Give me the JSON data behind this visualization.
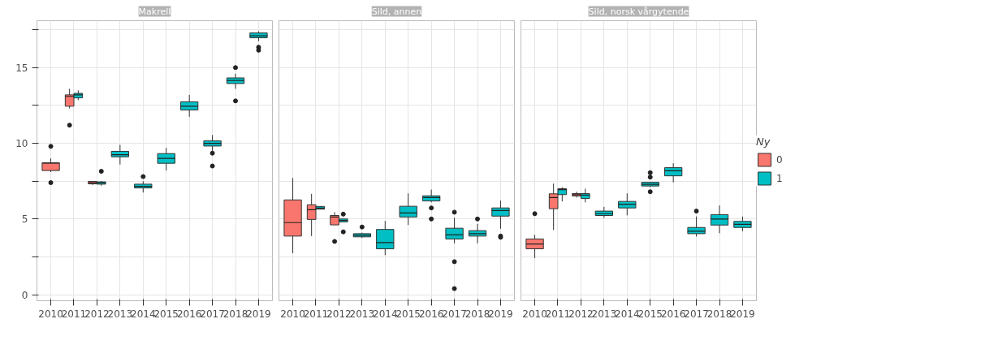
{
  "chart_data": [
    {
      "type": "box",
      "title": "Makrell",
      "categories": [
        "2010",
        "2011",
        "2012",
        "2013",
        "2014",
        "2015",
        "2016",
        "2017",
        "2018",
        "2019"
      ],
      "ylim": [
        -0.4,
        18.1
      ],
      "yticks": [
        0,
        {
          "value": 2.5,
          "label": null
        },
        5,
        {
          "value": 7.5,
          "label": null
        },
        10,
        {
          "value": 12.5,
          "label": null
        },
        15,
        {
          "value": 17.5,
          "label": null
        }
      ],
      "grid": true,
      "legend": false,
      "series": [
        {
          "color": "#f8766d",
          "boxes": [
            {
              "low": 8.1,
              "q1": 8.2,
              "median": 8.7,
              "q3": 8.7,
              "high": 9.0,
              "outliers": [
                9.8,
                7.4
              ]
            },
            {
              "low": 12.3,
              "q1": 12.45,
              "median": 13.1,
              "q3": 13.2,
              "high": 13.6,
              "outliers": [
                11.2
              ]
            },
            {
              "low": 7.25,
              "q1": 7.32,
              "median": 7.4,
              "q3": 7.48,
              "high": 7.5
            },
            null,
            null,
            null,
            null,
            null,
            null,
            null
          ]
        },
        {
          "color": "#00bfc4",
          "boxes": [
            null,
            {
              "low": 12.85,
              "q1": 13.0,
              "median": 13.2,
              "q3": 13.3,
              "high": 13.5
            },
            {
              "low": 7.2,
              "q1": 7.3,
              "median": 7.4,
              "q3": 7.45,
              "high": 7.5,
              "outliers": [
                8.15
              ]
            },
            {
              "low": 8.6,
              "q1": 9.11,
              "median": 9.25,
              "q3": 9.47,
              "high": 9.9
            },
            {
              "low": 6.75,
              "q1": 7.05,
              "median": 7.15,
              "q3": 7.3,
              "high": 7.5,
              "outliers": [
                7.8
              ]
            },
            {
              "low": 8.2,
              "q1": 8.68,
              "median": 9.0,
              "q3": 9.32,
              "high": 9.7
            },
            {
              "low": 11.75,
              "q1": 12.2,
              "median": 12.45,
              "q3": 12.74,
              "high": 13.2
            },
            {
              "low": 9.5,
              "q1": 9.82,
              "median": 10.0,
              "q3": 10.16,
              "high": 10.55,
              "outliers": [
                9.35,
                8.5
              ]
            },
            {
              "low": 13.6,
              "q1": 13.95,
              "median": 14.15,
              "q3": 14.32,
              "high": 14.6,
              "outliers": [
                15.0,
                12.8
              ]
            },
            {
              "low": 16.75,
              "q1": 16.97,
              "median": 17.1,
              "q3": 17.29,
              "high": 17.4,
              "outliers": [
                16.35,
                16.15
              ]
            }
          ]
        }
      ]
    },
    {
      "type": "box",
      "title": "Sild, annen",
      "categories": [
        "2010",
        "2011",
        "2012",
        "2013",
        "2014",
        "2015",
        "2016",
        "2017",
        "2018",
        "2019"
      ],
      "ylim": [
        -0.4,
        18.1
      ],
      "yticks": [
        0,
        {
          "value": 2.5,
          "label": null
        },
        5,
        {
          "value": 7.5,
          "label": null
        },
        10,
        {
          "value": 12.5,
          "label": null
        },
        15,
        {
          "value": 17.5,
          "label": null
        }
      ],
      "grid": true,
      "legend": false,
      "tick_labels": "x",
      "series": [
        {
          "color": "#f8766d",
          "boxes": [
            {
              "low": 2.74,
              "q1": 3.87,
              "median": 4.76,
              "q3": 6.26,
              "high": 7.71
            },
            {
              "low": 3.87,
              "q1": 4.97,
              "median": 5.61,
              "q3": 5.94,
              "high": 6.66
            },
            {
              "low": 4.61,
              "q1": 4.61,
              "median": 5.13,
              "q3": 5.23,
              "high": 5.45,
              "outliers": [
                3.52
              ]
            },
            null,
            null,
            null,
            null,
            null,
            null,
            null
          ]
        },
        {
          "color": "#00bfc4",
          "boxes": [
            null,
            {
              "low": 5.65,
              "q1": 5.65,
              "median": 5.72,
              "q3": 5.83,
              "high": 5.83
            },
            {
              "low": 4.81,
              "q1": 4.81,
              "median": 4.9,
              "q3": 5.0,
              "high": 5.0,
              "outliers": [
                5.32,
                4.15
              ]
            },
            {
              "low": 3.75,
              "q1": 3.82,
              "median": 3.92,
              "q3": 4.03,
              "high": 4.1,
              "outliers": [
                4.47
              ]
            },
            {
              "low": 2.61,
              "q1": 3.03,
              "median": 3.44,
              "q3": 4.31,
              "high": 4.87
            },
            {
              "low": 4.6,
              "q1": 5.13,
              "median": 5.4,
              "q3": 5.84,
              "high": 6.69
            },
            {
              "low": 6.1,
              "q1": 6.19,
              "median": 6.42,
              "q3": 6.53,
              "high": 6.94,
              "outliers": [
                5.73,
                5.0
              ]
            },
            {
              "low": 3.39,
              "q1": 3.68,
              "median": 3.95,
              "q3": 4.39,
              "high": 5.08,
              "outliers": [
                5.45,
                2.18,
                0.4
              ]
            },
            {
              "low": 3.39,
              "q1": 3.87,
              "median": 4.03,
              "q3": 4.23,
              "high": 4.68,
              "outliers": [
                5.0
              ]
            },
            {
              "low": 4.35,
              "q1": 5.19,
              "median": 5.56,
              "q3": 5.73,
              "high": 6.21,
              "outliers": [
                3.87,
                3.79
              ]
            }
          ]
        }
      ]
    },
    {
      "type": "box",
      "title": "Sild, norsk vårgytende",
      "categories": [
        "2010",
        "2011",
        "2012",
        "2013",
        "2014",
        "2015",
        "2016",
        "2017",
        "2018",
        "2019"
      ],
      "ylim": [
        -0.4,
        18.1
      ],
      "yticks": [
        0,
        {
          "value": 2.5,
          "label": null
        },
        5,
        {
          "value": 7.5,
          "label": null
        },
        10,
        {
          "value": 12.5,
          "label": null
        },
        15,
        {
          "value": 17.5,
          "label": null
        }
      ],
      "grid": true,
      "legend": "right",
      "legend_title": "Ny",
      "tick_labels": "x",
      "series": [
        {
          "name": "0",
          "color": "#f8766d",
          "boxes": [
            {
              "low": 2.42,
              "q1": 3.03,
              "median": 3.35,
              "q3": 3.68,
              "high": 3.95,
              "outliers": [
                5.35
              ]
            },
            {
              "low": 4.27,
              "q1": 5.68,
              "median": 6.42,
              "q3": 6.66,
              "high": 7.34
            },
            {
              "low": 6.42,
              "q1": 6.52,
              "median": 6.6,
              "q3": 6.68,
              "high": 6.8
            },
            null,
            null,
            null,
            null,
            null,
            null,
            null
          ]
        },
        {
          "name": "1",
          "color": "#00bfc4",
          "boxes": [
            null,
            {
              "low": 6.16,
              "q1": 6.61,
              "median": 6.94,
              "q3": 7.0,
              "high": 7.1
            },
            {
              "low": 6.1,
              "q1": 6.35,
              "median": 6.58,
              "q3": 6.68,
              "high": 7.0
            },
            {
              "low": 5.08,
              "q1": 5.23,
              "median": 5.35,
              "q3": 5.52,
              "high": 5.8
            },
            {
              "low": 5.24,
              "q1": 5.73,
              "median": 5.97,
              "q3": 6.16,
              "high": 6.69
            },
            {
              "low": 7.1,
              "q1": 7.18,
              "median": 7.29,
              "q3": 7.42,
              "high": 7.45,
              "outliers": [
                8.06,
                7.77,
                6.8
              ]
            },
            {
              "low": 7.42,
              "q1": 7.85,
              "median": 8.19,
              "q3": 8.39,
              "high": 8.68
            },
            {
              "low": 3.84,
              "q1": 4.03,
              "median": 4.19,
              "q3": 4.44,
              "high": 5.16,
              "outliers": [
                5.52
              ]
            },
            {
              "low": 4.06,
              "q1": 4.6,
              "median": 5.0,
              "q3": 5.29,
              "high": 5.89
            },
            {
              "low": 4.19,
              "q1": 4.44,
              "median": 4.65,
              "q3": 4.84,
              "high": 5.16
            }
          ]
        }
      ]
    }
  ]
}
